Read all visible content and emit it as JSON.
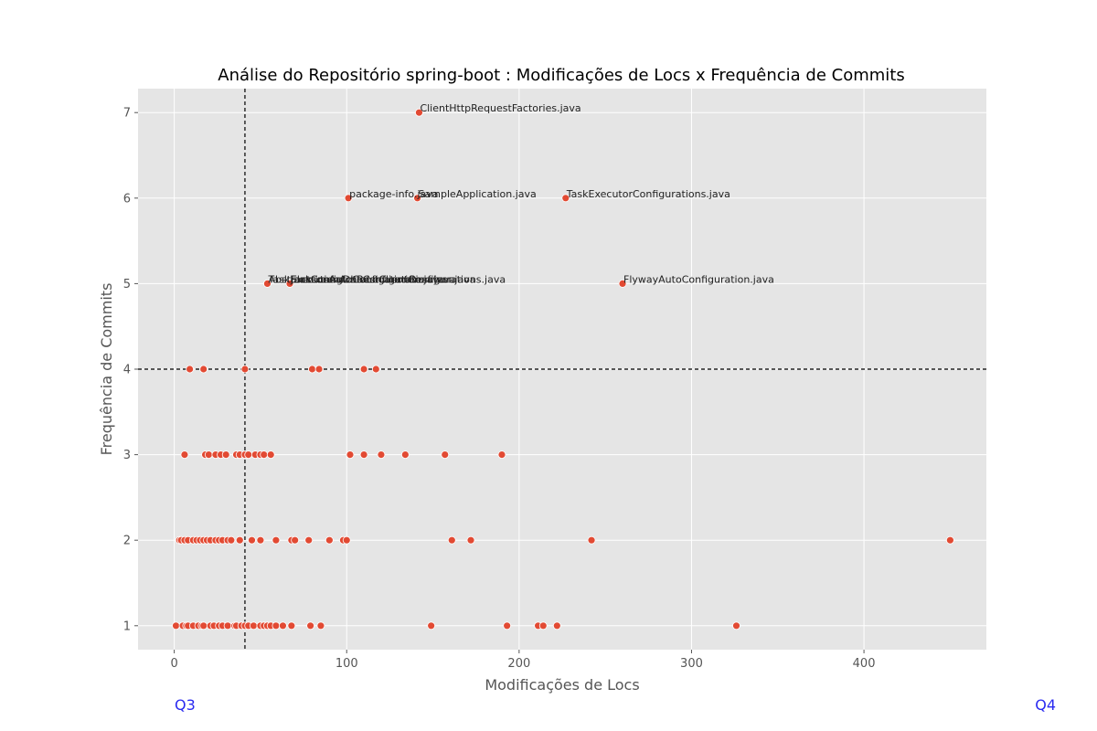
{
  "chart_data": {
    "type": "scatter",
    "title": "Análise do Repositório spring-boot : Modificações de Locs x Frequência de Commits",
    "xlabel": "Modificações de Locs",
    "ylabel": "Frequência de Commits",
    "xlim": [
      -21,
      471
    ],
    "ylim": [
      0.72,
      7.28
    ],
    "xticks": [
      0,
      100,
      200,
      300,
      400
    ],
    "yticks": [
      1,
      2,
      3,
      4,
      5,
      6,
      7
    ],
    "grid": true,
    "colors": {
      "background": "#e5e5e5",
      "grid": "#ffffff",
      "point": "#e24a33",
      "point_edge": "#ffffff",
      "reference_line": "#000000",
      "quadrant_label": "#2a2af0"
    },
    "reference_lines": {
      "x": 41,
      "y": 4
    },
    "quadrant_labels": [
      "Q3",
      "Q4"
    ],
    "points": [
      {
        "x": 142,
        "y": 7,
        "label": "ClientHttpRequestFactories.java"
      },
      {
        "x": 101,
        "y": 6,
        "label": "package-info.java"
      },
      {
        "x": 141,
        "y": 6,
        "label": "SampleApplication.java"
      },
      {
        "x": 227,
        "y": 6,
        "label": "TaskExecutorConfigurations.java"
      },
      {
        "x": 260,
        "y": 5,
        "label": "FlywayAutoConfiguration.java"
      },
      {
        "x": 54,
        "y": 5,
        "label": "TaskExecutionAutoConfiguration.java"
      },
      {
        "x": 54,
        "y": 5,
        "label": "AbstractConfigDataLocationResolver.java"
      },
      {
        "x": 67,
        "y": 5,
        "label": "ElasticsearchRestClientConfigurations.java"
      },
      {
        "x": 67,
        "y": 5,
        "label": "JacksonAutoConfiguration.java"
      },
      {
        "x": 9,
        "y": 4
      },
      {
        "x": 17,
        "y": 4
      },
      {
        "x": 41,
        "y": 4
      },
      {
        "x": 80,
        "y": 4
      },
      {
        "x": 84,
        "y": 4
      },
      {
        "x": 110,
        "y": 4
      },
      {
        "x": 117,
        "y": 4
      },
      {
        "x": 6,
        "y": 3
      },
      {
        "x": 18,
        "y": 3
      },
      {
        "x": 20,
        "y": 3
      },
      {
        "x": 24,
        "y": 3
      },
      {
        "x": 27,
        "y": 3
      },
      {
        "x": 30,
        "y": 3
      },
      {
        "x": 36,
        "y": 3
      },
      {
        "x": 38,
        "y": 3
      },
      {
        "x": 41,
        "y": 3
      },
      {
        "x": 43,
        "y": 3
      },
      {
        "x": 47,
        "y": 3
      },
      {
        "x": 50,
        "y": 3
      },
      {
        "x": 52,
        "y": 3
      },
      {
        "x": 56,
        "y": 3
      },
      {
        "x": 102,
        "y": 3
      },
      {
        "x": 110,
        "y": 3
      },
      {
        "x": 120,
        "y": 3
      },
      {
        "x": 134,
        "y": 3
      },
      {
        "x": 157,
        "y": 3
      },
      {
        "x": 190,
        "y": 3
      },
      {
        "x": 3,
        "y": 2
      },
      {
        "x": 4,
        "y": 2
      },
      {
        "x": 6,
        "y": 2
      },
      {
        "x": 8,
        "y": 2
      },
      {
        "x": 11,
        "y": 2
      },
      {
        "x": 13,
        "y": 2
      },
      {
        "x": 15,
        "y": 2
      },
      {
        "x": 17,
        "y": 2
      },
      {
        "x": 19,
        "y": 2
      },
      {
        "x": 21,
        "y": 2
      },
      {
        "x": 24,
        "y": 2
      },
      {
        "x": 26,
        "y": 2
      },
      {
        "x": 28,
        "y": 2
      },
      {
        "x": 31,
        "y": 2
      },
      {
        "x": 33,
        "y": 2
      },
      {
        "x": 38,
        "y": 2
      },
      {
        "x": 45,
        "y": 2
      },
      {
        "x": 50,
        "y": 2
      },
      {
        "x": 59,
        "y": 2
      },
      {
        "x": 68,
        "y": 2
      },
      {
        "x": 70,
        "y": 2
      },
      {
        "x": 78,
        "y": 2
      },
      {
        "x": 90,
        "y": 2
      },
      {
        "x": 98,
        "y": 2
      },
      {
        "x": 100,
        "y": 2
      },
      {
        "x": 161,
        "y": 2
      },
      {
        "x": 172,
        "y": 2
      },
      {
        "x": 242,
        "y": 2
      },
      {
        "x": 450,
        "y": 2
      },
      {
        "x": 1,
        "y": 1
      },
      {
        "x": 5,
        "y": 1
      },
      {
        "x": 7,
        "y": 1
      },
      {
        "x": 8,
        "y": 1
      },
      {
        "x": 11,
        "y": 1
      },
      {
        "x": 14,
        "y": 1
      },
      {
        "x": 16,
        "y": 1
      },
      {
        "x": 17,
        "y": 1
      },
      {
        "x": 21,
        "y": 1
      },
      {
        "x": 23,
        "y": 1
      },
      {
        "x": 26,
        "y": 1
      },
      {
        "x": 28,
        "y": 1
      },
      {
        "x": 31,
        "y": 1
      },
      {
        "x": 35,
        "y": 1
      },
      {
        "x": 36,
        "y": 1
      },
      {
        "x": 39,
        "y": 1
      },
      {
        "x": 41,
        "y": 1
      },
      {
        "x": 43,
        "y": 1
      },
      {
        "x": 46,
        "y": 1
      },
      {
        "x": 50,
        "y": 1
      },
      {
        "x": 52,
        "y": 1
      },
      {
        "x": 54,
        "y": 1
      },
      {
        "x": 56,
        "y": 1
      },
      {
        "x": 59,
        "y": 1
      },
      {
        "x": 63,
        "y": 1
      },
      {
        "x": 68,
        "y": 1
      },
      {
        "x": 79,
        "y": 1
      },
      {
        "x": 85,
        "y": 1
      },
      {
        "x": 149,
        "y": 1
      },
      {
        "x": 193,
        "y": 1
      },
      {
        "x": 211,
        "y": 1
      },
      {
        "x": 214,
        "y": 1
      },
      {
        "x": 222,
        "y": 1
      },
      {
        "x": 326,
        "y": 1
      }
    ]
  }
}
